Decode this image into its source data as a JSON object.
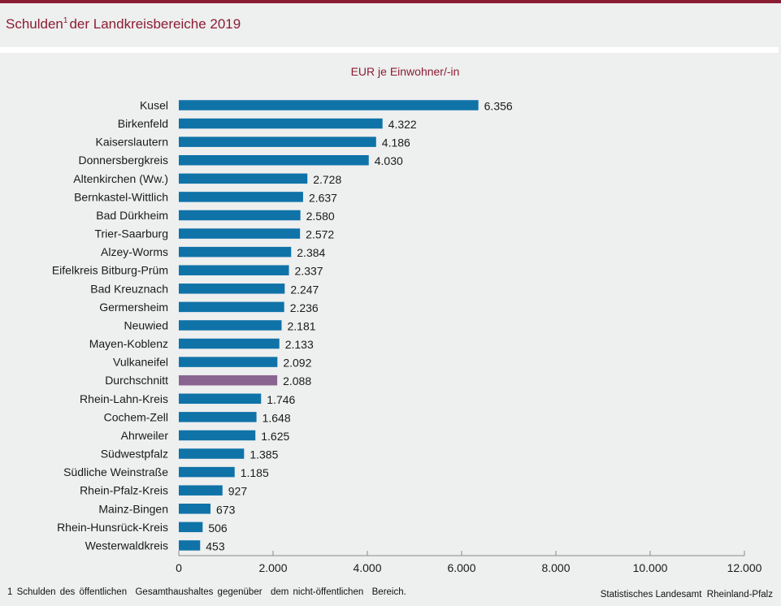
{
  "header": {
    "title_main": "Schulden",
    "title_sup": "1",
    "title_rest": "der Landkreisbereiche 2019"
  },
  "unit_label": "EUR je Einwohner/-in",
  "footnote": "1 Schulden des öffentlichen  Gesamthaushaltes gegenüber  dem nicht-öffentlichen  Bereich.",
  "source": "Statistisches Landesamt  Rheinland-Pfalz",
  "colors": {
    "accent": "#8b1d33",
    "bar": "#0f73a8",
    "highlight_bar": "#8a6491"
  },
  "chart_data": {
    "type": "bar",
    "orientation": "horizontal",
    "title": "Schulden¹ der Landkreisbereiche 2019",
    "xlabel": "EUR je Einwohner/-in",
    "ylabel": "",
    "xlim": [
      0,
      12000
    ],
    "xticks": [
      0,
      2000,
      4000,
      6000,
      8000,
      10000,
      12000
    ],
    "xtick_labels": [
      "0",
      "2.000",
      "4.000",
      "6.000",
      "8.000",
      "10.000",
      "12.000"
    ],
    "grid": false,
    "categories": [
      "Kusel",
      "Birkenfeld",
      "Kaiserslautern",
      "Donnersbergkreis",
      "Altenkirchen (Ww.)",
      "Bernkastel-Wittlich",
      "Bad Dürkheim",
      "Trier-Saarburg",
      "Alzey-Worms",
      "Eifelkreis Bitburg-Prüm",
      "Bad Kreuznach",
      "Germersheim",
      "Neuwied",
      "Mayen-Koblenz",
      "Vulkaneifel",
      "Durchschnitt",
      "Rhein-Lahn-Kreis",
      "Cochem-Zell",
      "Ahrweiler",
      "Südwestpfalz",
      "Südliche Weinstraße",
      "Rhein-Pfalz-Kreis",
      "Mainz-Bingen",
      "Rhein-Hunsrück-Kreis",
      "Westerwaldkreis"
    ],
    "values": [
      6356,
      4322,
      4186,
      4030,
      2728,
      2637,
      2580,
      2572,
      2384,
      2337,
      2247,
      2236,
      2181,
      2133,
      2092,
      2088,
      1746,
      1648,
      1625,
      1385,
      1185,
      927,
      673,
      506,
      453
    ],
    "value_labels": [
      "6.356",
      "4.322",
      "4.186",
      "4.030",
      "2.728",
      "2.637",
      "2.580",
      "2.572",
      "2.384",
      "2.337",
      "2.247",
      "2.236",
      "2.181",
      "2.133",
      "2.092",
      "2.088",
      "1.746",
      "1.648",
      "1.625",
      "1.385",
      "1.185",
      "927",
      "673",
      "506",
      "453"
    ],
    "highlight": "Durchschnitt"
  }
}
